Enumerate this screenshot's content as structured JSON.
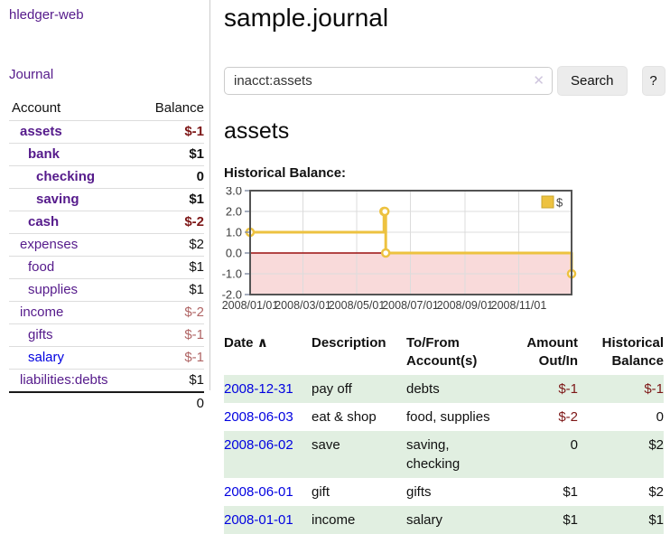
{
  "colors": {
    "purple_link": "#551a8b",
    "new_link": "#0000e0",
    "negative_strong": "#7d1717",
    "negative_soft": "#b06565",
    "row_shade_green": "#e1efe1",
    "series_yellow": "#edc240",
    "negative_region_pink": "#f9dada",
    "zero_line_red": "#9b0e0e",
    "chart_border": "#545454",
    "gridline": "#dcdcdc"
  },
  "app": {
    "title": "hledger-web"
  },
  "sidebar": {
    "journal_link": "Journal",
    "accounts": {
      "headers": {
        "account": "Account",
        "balance": "Balance"
      },
      "rows": [
        {
          "name": "assets",
          "level": 1,
          "in_query": true,
          "link_style": "visited",
          "balance": "$-1",
          "balance_style": "negative-strong"
        },
        {
          "name": "bank",
          "level": 2,
          "in_query": true,
          "link_style": "visited",
          "balance": "$1",
          "balance_style": "normal"
        },
        {
          "name": "checking",
          "level": 3,
          "in_query": true,
          "link_style": "visited",
          "balance": "0",
          "balance_style": "normal"
        },
        {
          "name": "saving",
          "level": 3,
          "in_query": true,
          "link_style": "visited",
          "balance": "$1",
          "balance_style": "normal"
        },
        {
          "name": "cash",
          "level": 2,
          "in_query": true,
          "link_style": "visited",
          "balance": "$-2",
          "balance_style": "negative-strong"
        },
        {
          "name": "expenses",
          "level": 1,
          "in_query": false,
          "link_style": "visited",
          "balance": "$2",
          "balance_style": "normal"
        },
        {
          "name": "food",
          "level": 2,
          "in_query": false,
          "link_style": "visited",
          "balance": "$1",
          "balance_style": "normal"
        },
        {
          "name": "supplies",
          "level": 2,
          "in_query": false,
          "link_style": "visited",
          "balance": "$1",
          "balance_style": "normal"
        },
        {
          "name": "income",
          "level": 1,
          "in_query": false,
          "link_style": "visited",
          "balance": "$-2",
          "balance_style": "negative-soft"
        },
        {
          "name": "gifts",
          "level": 2,
          "in_query": false,
          "link_style": "visited",
          "balance": "$-1",
          "balance_style": "negative-soft"
        },
        {
          "name": "salary",
          "level": 2,
          "in_query": false,
          "link_style": "new",
          "balance": "$-1",
          "balance_style": "negative-soft"
        },
        {
          "name": "liabilities:debts",
          "level": 1,
          "in_query": false,
          "link_style": "visited",
          "balance": "$1",
          "balance_style": "normal"
        }
      ],
      "total": "0"
    }
  },
  "main": {
    "title": "sample.journal",
    "search": {
      "value": "inacct:assets",
      "clear_icon": "✕",
      "button_label": "Search",
      "help_label": "?"
    },
    "account_heading": "assets",
    "register": {
      "sort_indicator": "∧",
      "headers": {
        "date": "Date",
        "description": "Description",
        "to_from": "To/From Account(s)",
        "amount": "Amount Out/In",
        "balance": "Historical Balance"
      },
      "rows": [
        {
          "date": "2008-12-31",
          "description": "pay off",
          "to_from": "debts",
          "amount": "$-1",
          "amount_negative": true,
          "balance": "$-1",
          "balance_negative": true,
          "shaded": true
        },
        {
          "date": "2008-06-03",
          "description": "eat & shop",
          "to_from": "food, supplies",
          "amount": "$-2",
          "amount_negative": true,
          "balance": "0",
          "balance_negative": false,
          "shaded": false
        },
        {
          "date": "2008-06-02",
          "description": "save",
          "to_from": "saving, checking",
          "amount": "0",
          "amount_negative": false,
          "balance": "$2",
          "balance_negative": false,
          "shaded": true
        },
        {
          "date": "2008-06-01",
          "description": "gift",
          "to_from": "gifts",
          "amount": "$1",
          "amount_negative": false,
          "balance": "$2",
          "balance_negative": false,
          "shaded": false
        },
        {
          "date": "2008-01-01",
          "description": "income",
          "to_from": "salary",
          "amount": "$1",
          "amount_negative": false,
          "balance": "$1",
          "balance_negative": false,
          "shaded": true
        }
      ]
    }
  },
  "chart_data": {
    "type": "line",
    "step": true,
    "title": "Historical Balance:",
    "series": [
      {
        "name": "$",
        "color": "#edc240",
        "points": [
          [
            "2008-01-01",
            1.0
          ],
          [
            "2008-06-01",
            2.0
          ],
          [
            "2008-06-02",
            2.0
          ],
          [
            "2008-06-03",
            0.0
          ],
          [
            "2008-12-31",
            -1.0
          ]
        ]
      }
    ],
    "xlim": [
      "2008-01-01",
      "2008-12-31"
    ],
    "ylim": [
      -2.0,
      3.0
    ],
    "yticks": [
      {
        "v": 3,
        "label": "3.0"
      },
      {
        "v": 2,
        "label": "2.0"
      },
      {
        "v": 1,
        "label": "1.0"
      },
      {
        "v": 0,
        "label": "0.0"
      },
      {
        "v": -1,
        "label": "-1.0"
      },
      {
        "v": -2,
        "label": "-2.0"
      }
    ],
    "xticks": [
      {
        "d": "2008-01-01",
        "label": "2008/01/01"
      },
      {
        "d": "2008-03-01",
        "label": "2008/03/01"
      },
      {
        "d": "2008-05-01",
        "label": "2008/05/01"
      },
      {
        "d": "2008-07-01",
        "label": "2008/07/01"
      },
      {
        "d": "2008-09-01",
        "label": "2008/09/01"
      },
      {
        "d": "2008-11-01",
        "label": "2008/11/01"
      }
    ],
    "grid": true,
    "legend_position": "top-right",
    "negative_region_shaded": true
  }
}
